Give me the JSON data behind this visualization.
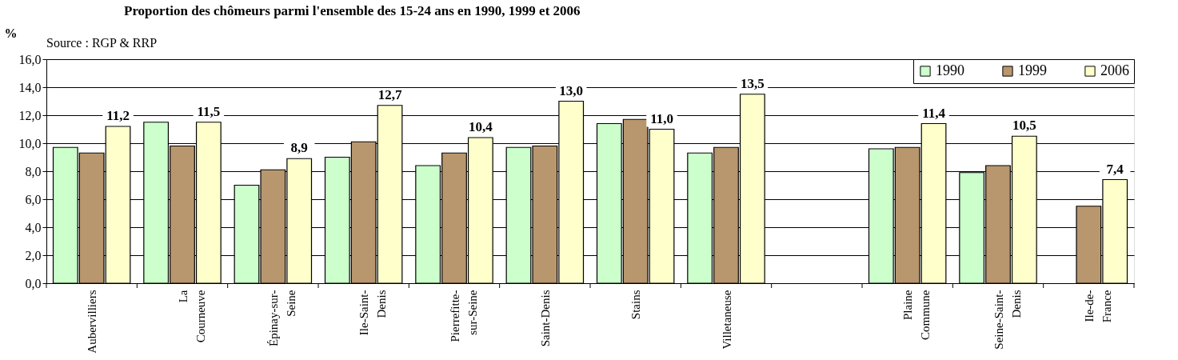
{
  "chart_data": {
    "type": "bar",
    "title": "Proportion des chômeurs parmi l'ensemble des 15-24 ans en 1990, 1999 et 2006",
    "ylabel": "%",
    "annotations": [
      "Source : RGP & RRP"
    ],
    "categories": [
      "Aubervilliers",
      "La Courneuve",
      "Épinay-sur-Seine",
      "Ile-Saint-Denis",
      "Pierrefitte-sur-Seine",
      "Saint-Denis",
      "Stains",
      "Villetaneuse",
      null,
      "Plaine Commune",
      "Seine-Saint-Denis",
      "Ile-de-France"
    ],
    "series": [
      {
        "name": "1990",
        "color": "#ccffcc",
        "values": [
          9.7,
          11.5,
          7.0,
          9.0,
          8.4,
          9.7,
          11.4,
          9.3,
          null,
          9.6,
          7.9,
          null
        ]
      },
      {
        "name": "1999",
        "color": "#b8976e",
        "values": [
          9.3,
          9.8,
          8.1,
          10.1,
          9.3,
          9.8,
          11.7,
          9.7,
          null,
          9.7,
          8.4,
          5.5
        ]
      },
      {
        "name": "2006",
        "color": "#ffffcc",
        "values": [
          11.2,
          11.5,
          8.9,
          12.7,
          10.4,
          13.0,
          11.0,
          13.5,
          null,
          11.4,
          10.5,
          7.4
        ],
        "value_labels": [
          "11,2",
          "11,5",
          "8,9",
          "12,7",
          "10,4",
          "13,0",
          "11,0",
          "13,5",
          null,
          "11,4",
          "10,5",
          "7,4"
        ]
      }
    ],
    "ylim": [
      0,
      16
    ],
    "yticks": [
      {
        "value": 0,
        "label": "0,0"
      },
      {
        "value": 2,
        "label": "2,0"
      },
      {
        "value": 4,
        "label": "4,0"
      },
      {
        "value": 6,
        "label": "6,0"
      },
      {
        "value": 8,
        "label": "8,0"
      },
      {
        "value": 10,
        "label": "10,0"
      },
      {
        "value": 12,
        "label": "12,0"
      },
      {
        "value": 14,
        "label": "14,0"
      },
      {
        "value": 16,
        "label": "16,0"
      }
    ],
    "grid": "y",
    "legend": "top right"
  }
}
